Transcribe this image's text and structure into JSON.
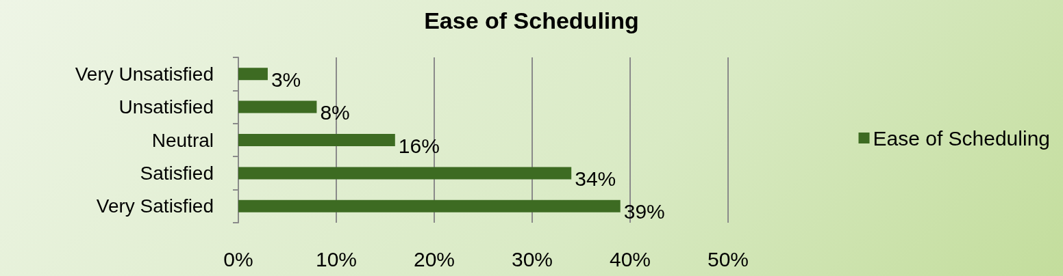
{
  "chart_data": {
    "type": "bar",
    "title": "Ease of Scheduling",
    "orientation": "horizontal",
    "categories": [
      "Very Unsatisfied",
      "Unsatisfied",
      "Neutral",
      "Satisfied",
      "Very Satisfied"
    ],
    "series": [
      {
        "name": "Ease of Scheduling",
        "color": "#3d6b22",
        "values": [
          3,
          8,
          16,
          34,
          39
        ],
        "value_labels": [
          "3%",
          "8%",
          "16%",
          "34%",
          "39%"
        ]
      }
    ],
    "xlim": [
      0,
      50
    ],
    "xticks": [
      {
        "value": 0,
        "label": "0%"
      },
      {
        "value": 10,
        "label": "10%"
      },
      {
        "value": 20,
        "label": "20%"
      },
      {
        "value": 30,
        "label": "30%"
      },
      {
        "value": 40,
        "label": "40%"
      },
      {
        "value": 50,
        "label": "50%"
      }
    ],
    "grid": "x",
    "legend": "right"
  }
}
